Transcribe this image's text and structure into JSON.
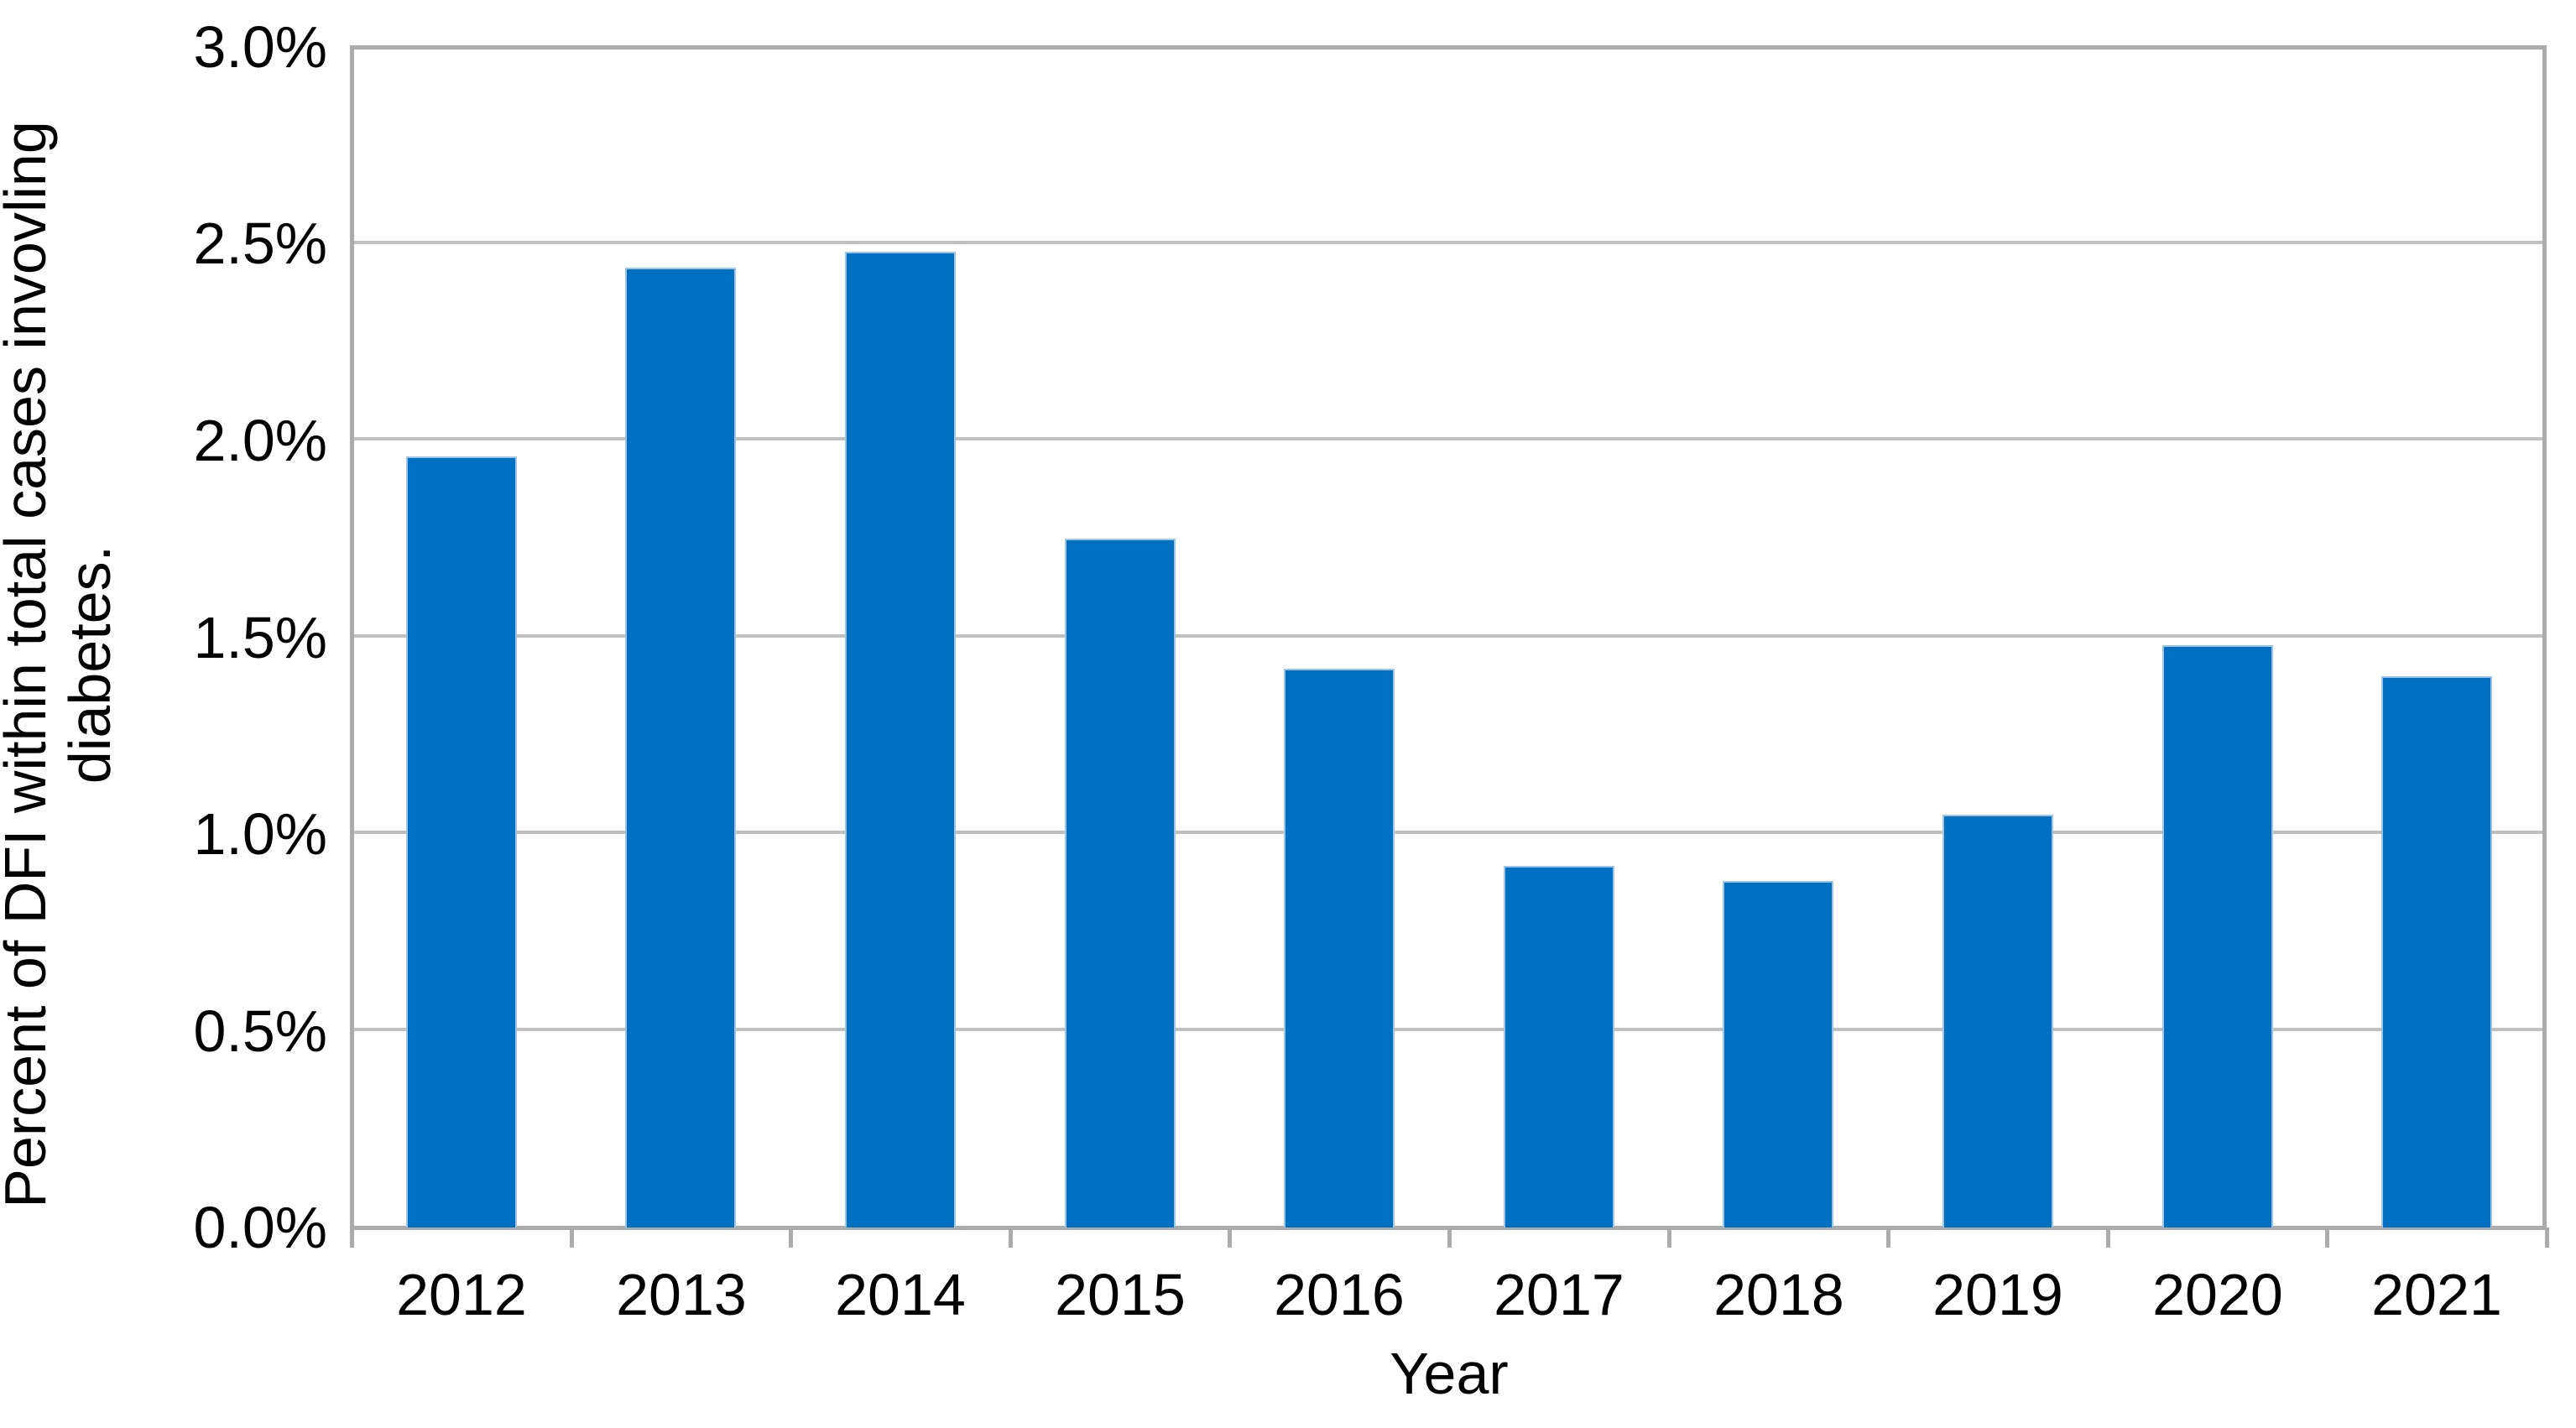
{
  "chart_data": {
    "type": "bar",
    "title": "",
    "categories": [
      "2012",
      "2013",
      "2014",
      "2015",
      "2016",
      "2017",
      "2018",
      "2019",
      "2020",
      "2021"
    ],
    "values": [
      1.96,
      2.44,
      2.48,
      1.75,
      1.42,
      0.92,
      0.88,
      1.05,
      1.48,
      1.4
    ],
    "values_unit": "%",
    "series": [
      {
        "name": "Percent of DFI within total cases involving diabetes",
        "values": [
          1.96,
          2.44,
          2.48,
          1.75,
          1.42,
          0.92,
          0.88,
          1.05,
          1.48,
          1.4
        ]
      }
    ],
    "xlabel": "Year",
    "ylabel": "Percent of DFI within total cases invovling diabetes.",
    "ylabel_lines": [
      "Percent of DFI within total cases invovling",
      "diabetes."
    ],
    "ylim": [
      0.0,
      3.0
    ],
    "ytick_step": 0.5,
    "ytick_labels": [
      "0.0%",
      "0.5%",
      "1.0%",
      "1.5%",
      "2.0%",
      "2.5%",
      "3.0%"
    ],
    "grid": true,
    "legend_position": "none",
    "colors": {
      "bar_fill": "#0070C0",
      "bar_edge": "#9DC3E6",
      "gridline": "#C0C0C0",
      "plot_border": "#ABABAB",
      "axis_text": "#000000",
      "background": "#FFFFFF"
    }
  }
}
